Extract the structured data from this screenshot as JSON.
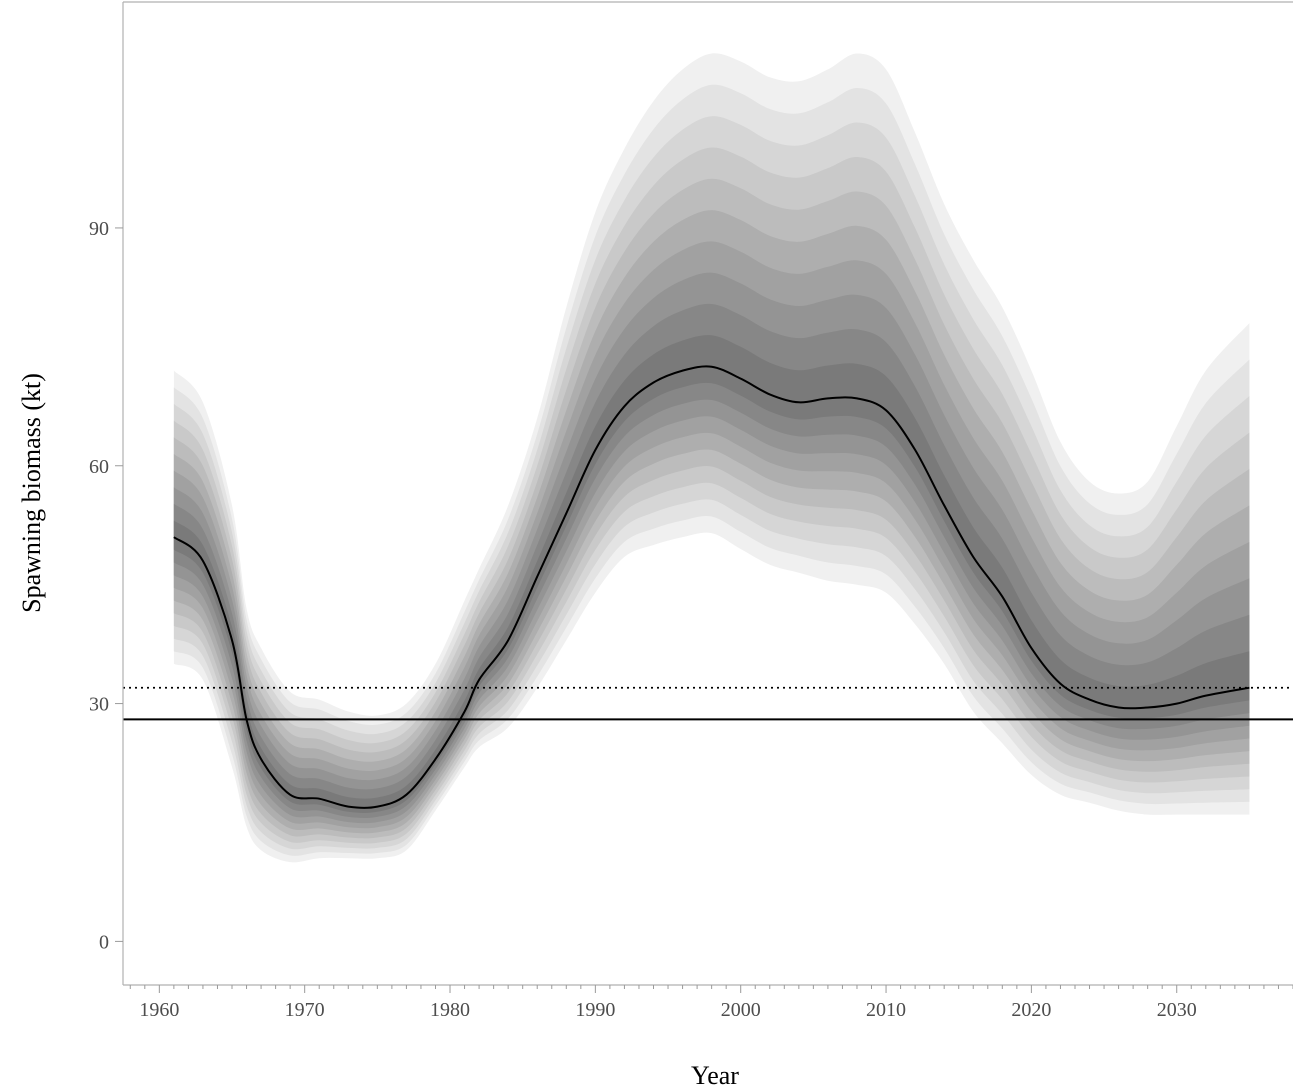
{
  "chart_data": {
    "type": "area",
    "xlabel": "Year",
    "ylabel": "Spawning biomass (kt)",
    "xlim": [
      1957.5,
      2038
    ],
    "ylim": [
      -5.5,
      118.5
    ],
    "x_ticks": [
      1960,
      1970,
      1980,
      1990,
      2000,
      2010,
      2020,
      2030
    ],
    "y_ticks": [
      0,
      30,
      60,
      90
    ],
    "x_tick_labels": [
      "1960",
      "1970",
      "1980",
      "1990",
      "2000",
      "2010",
      "2020",
      "2030"
    ],
    "y_tick_labels": [
      "0",
      "30",
      "60",
      "90"
    ],
    "minor_x_ticks_every": 1,
    "grid": false,
    "colors": {
      "median": "#000000",
      "band_lightest": "#f0f0f0",
      "band_darkest": "#7a7a7a",
      "axis": "#b0b0b0",
      "reference": "#000000"
    },
    "reference_lines": [
      {
        "y": 28.0,
        "style": "solid"
      },
      {
        "y": 32.0,
        "style": "dotted"
      }
    ],
    "x": [
      1961,
      1963,
      1965,
      1966,
      1967,
      1969,
      1971,
      1973,
      1975,
      1977,
      1979,
      1981,
      1982,
      1984,
      1986,
      1988,
      1990,
      1992,
      1994,
      1996,
      1998,
      2000,
      2002,
      2004,
      2006,
      2008,
      2010,
      2012,
      2014,
      2016,
      2018,
      2020,
      2022,
      2024,
      2026,
      2028,
      2030,
      2032,
      2035
    ],
    "median": [
      51,
      48,
      38,
      28,
      23,
      18.5,
      18,
      17,
      17,
      18.5,
      23,
      29,
      33,
      38,
      46,
      54,
      62,
      67.5,
      70.5,
      72,
      72.5,
      71,
      69,
      68,
      68.5,
      68.5,
      67,
      62,
      55,
      48.5,
      43.5,
      37,
      32.5,
      30.5,
      29.5,
      29.5,
      30,
      31,
      32
    ],
    "series": [
      {
        "name": "q025",
        "values": [
          35,
          33,
          22,
          14.5,
          11.5,
          10,
          10.5,
          10.5,
          10.5,
          11.5,
          16.5,
          22,
          24.5,
          27,
          32,
          38,
          44,
          48.5,
          50,
          51,
          51.5,
          49.5,
          47.5,
          46.5,
          45.5,
          45,
          44,
          40,
          35,
          29,
          25,
          21,
          18.5,
          17.5,
          16.5,
          16,
          16,
          16,
          16
        ]
      },
      {
        "name": "q975",
        "values": [
          72,
          68,
          55,
          42,
          37,
          31.5,
          30.5,
          29,
          28.5,
          30,
          35,
          43,
          47,
          55,
          66,
          80,
          92,
          100,
          106,
          110,
          112,
          111,
          109,
          108.5,
          110,
          112,
          110,
          102,
          93,
          86,
          80,
          72,
          63,
          58,
          56.5,
          58,
          65,
          72,
          78
        ]
      }
    ]
  }
}
